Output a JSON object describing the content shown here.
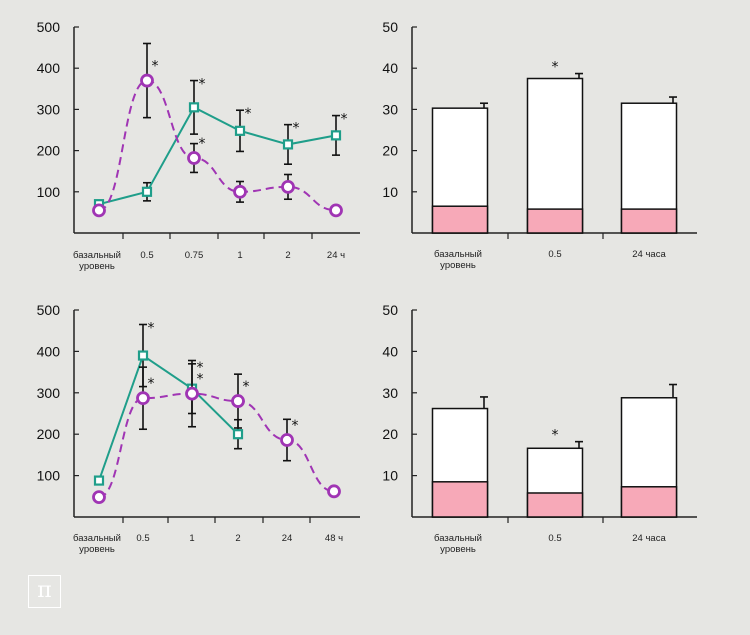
{
  "logo": {
    "symbol": "π"
  },
  "colors": {
    "teal": "#1f9e8a",
    "purple": "#a035b4",
    "pink": "#f7a9b8",
    "axis": "#222222"
  },
  "chart_data": [
    {
      "id": "top-left",
      "type": "line",
      "x": [
        "базальный уровень",
        "0.5",
        "0.75",
        "1",
        "2",
        "24 ч"
      ],
      "ylim": [
        0,
        500
      ],
      "yticks": [
        100,
        200,
        300,
        400,
        500
      ],
      "series": [
        {
          "color": "teal",
          "style": "solid",
          "marker": "square",
          "values": [
            70,
            100,
            305,
            248,
            215,
            237
          ],
          "errors": [
            null,
            22,
            65,
            50,
            48,
            48
          ],
          "stars": [
            false,
            false,
            true,
            true,
            true,
            true
          ]
        },
        {
          "color": "purple",
          "style": "dashed",
          "marker": "circle",
          "values": [
            55,
            370,
            182,
            100,
            112,
            55
          ],
          "errors": [
            null,
            90,
            35,
            25,
            30,
            null
          ],
          "stars": [
            false,
            true,
            true,
            false,
            false,
            false
          ]
        }
      ]
    },
    {
      "id": "bottom-left",
      "type": "line",
      "x": [
        "базальный уровень",
        "0.5",
        "1",
        "2",
        "24",
        "48 ч"
      ],
      "ylim": [
        0,
        500
      ],
      "yticks": [
        100,
        200,
        300,
        400,
        500
      ],
      "series": [
        {
          "color": "teal",
          "style": "solid",
          "marker": "square",
          "values": [
            88,
            390,
            310,
            200,
            null,
            null
          ],
          "errors": [
            null,
            75,
            60,
            35,
            null,
            null
          ],
          "stars": [
            false,
            true,
            true,
            false,
            false,
            false
          ]
        },
        {
          "color": "purple",
          "style": "dashed",
          "marker": "circle",
          "values": [
            48,
            287,
            298,
            280,
            186,
            62
          ],
          "errors": [
            null,
            75,
            80,
            65,
            50,
            null
          ],
          "stars": [
            false,
            true,
            true,
            true,
            true,
            false
          ]
        }
      ]
    },
    {
      "id": "top-right",
      "type": "bar",
      "categories": [
        "базальный уровень",
        "0.5",
        "24 часа"
      ],
      "ylim": [
        0,
        50
      ],
      "yticks": [
        10,
        20,
        30,
        40,
        50
      ],
      "total": [
        30.3,
        37.5,
        31.5
      ],
      "total_errors": [
        1.2,
        1.2,
        1.5
      ],
      "base": [
        6.5,
        5.8,
        5.8
      ],
      "stars": [
        false,
        true,
        false
      ]
    },
    {
      "id": "bottom-right",
      "type": "bar",
      "categories": [
        "базальный уровень",
        "0.5",
        "24 часа"
      ],
      "ylim": [
        0,
        50
      ],
      "yticks": [
        10,
        20,
        30,
        40,
        50
      ],
      "total": [
        26.2,
        16.6,
        28.8
      ],
      "total_errors": [
        2.8,
        1.6,
        3.2
      ],
      "base": [
        8.5,
        5.8,
        7.3
      ],
      "stars": [
        false,
        true,
        false
      ]
    }
  ]
}
